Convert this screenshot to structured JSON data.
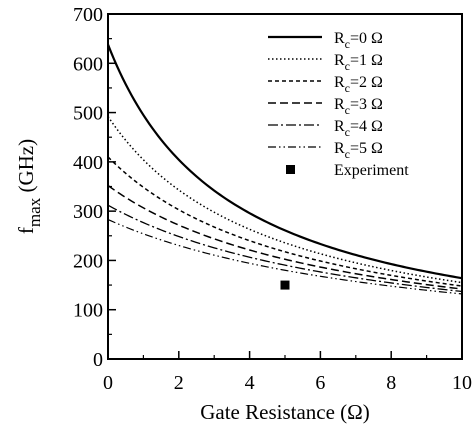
{
  "chart_data": {
    "type": "line",
    "xlabel": "Gate Resistance (Ω)",
    "ylabel_main": "f",
    "ylabel_sub": "max",
    "ylabel_rest": " (GHz)",
    "xlim": [
      0,
      10
    ],
    "ylim": [
      0,
      700
    ],
    "x_ticks": [
      0,
      2,
      4,
      6,
      8,
      10
    ],
    "x_tick_labels": [
      "0",
      "2",
      "4",
      "6",
      "8",
      "10"
    ],
    "y_ticks": [
      0,
      100,
      200,
      300,
      400,
      500,
      600,
      700
    ],
    "y_tick_labels": [
      "0",
      "100",
      "200",
      "300",
      "400",
      "500",
      "600",
      "700"
    ],
    "grid": false,
    "legend_position": "top-right",
    "series": [
      {
        "label_main": "R",
        "label_sub": "c",
        "label_rest": "=0 Ω",
        "style": "solid",
        "width": 2.2,
        "values": [
          {
            "x": 0,
            "y": 638
          },
          {
            "x": 10,
            "y": 164
          }
        ]
      },
      {
        "label_main": "R",
        "label_sub": "c",
        "label_rest": "=1 Ω",
        "style": "dotted",
        "width": 1.5,
        "values": [
          {
            "x": 0,
            "y": 492
          },
          {
            "x": 10,
            "y": 155
          }
        ]
      },
      {
        "label_main": "R",
        "label_sub": "c",
        "label_rest": "=2 Ω",
        "style": "shortdash",
        "width": 1.5,
        "values": [
          {
            "x": 0,
            "y": 410
          },
          {
            "x": 10,
            "y": 148
          }
        ]
      },
      {
        "label_main": "R",
        "label_sub": "c",
        "label_rest": "=3 Ω",
        "style": "dash",
        "width": 1.5,
        "values": [
          {
            "x": 0,
            "y": 352
          },
          {
            "x": 10,
            "y": 142
          }
        ]
      },
      {
        "label_main": "R",
        "label_sub": "c",
        "label_rest": "=4 Ω",
        "style": "dashdot",
        "width": 1.3,
        "values": [
          {
            "x": 0,
            "y": 312
          },
          {
            "x": 10,
            "y": 137
          }
        ]
      },
      {
        "label_main": "R",
        "label_sub": "c",
        "label_rest": "=5 Ω",
        "style": "dashdotdot",
        "width": 1.2,
        "values": [
          {
            "x": 0,
            "y": 283
          },
          {
            "x": 10,
            "y": 132
          }
        ]
      }
    ],
    "experiment": {
      "label": "Experiment",
      "x": 5.0,
      "y": 150
    }
  }
}
